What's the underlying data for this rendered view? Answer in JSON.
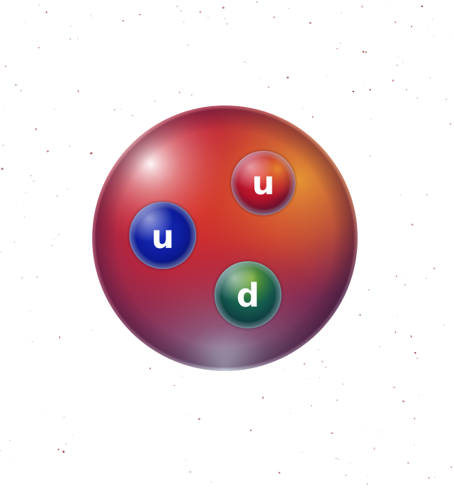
{
  "colors": {
    "proton_core": "#d62a24",
    "proton_warm": "#e08a2c",
    "proton_cool": "#7a2a55",
    "speckle": "#8a1f2a",
    "quark_red": "#c4162c",
    "quark_blue": "#0c1ea0",
    "quark_green": "#1a6a4a",
    "label": "#ffffff"
  },
  "quarks": [
    {
      "label": "u",
      "color": "red"
    },
    {
      "label": "u",
      "color": "blue"
    },
    {
      "label": "d",
      "color": "green"
    }
  ]
}
